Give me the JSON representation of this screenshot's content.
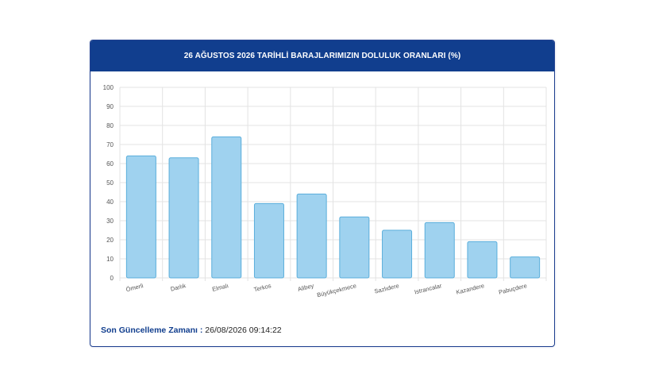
{
  "header": {
    "title": "26 AĞUSTOS 2026 TARİHLİ BARAJLARIMIZIN DOLULUK ORANLARI (%)"
  },
  "footer": {
    "label": "Son Güncelleme Zamanı :",
    "value": "26/08/2026 09:14:22"
  },
  "colors": {
    "header_bg": "#113e8e",
    "bar_fill": "#9fd2ef",
    "bar_stroke": "#5aaedb",
    "grid": "#e3e3e3"
  },
  "chart_data": {
    "type": "bar",
    "title": "26 AĞUSTOS 2026 TARİHLİ BARAJLARIMIZIN DOLULUK ORANLARI (%)",
    "categories": [
      "Ömerli",
      "Darlık",
      "Elmalı",
      "Terkos",
      "Alibey",
      "Büyükçekmece",
      "Sazlıdere",
      "Istrancalar",
      "Kazandere",
      "Pabuçdere"
    ],
    "values": [
      64,
      63,
      74,
      39,
      44,
      32,
      25,
      29,
      19,
      11
    ],
    "ylim": [
      0,
      100
    ],
    "yticks": [
      0,
      10,
      20,
      30,
      40,
      50,
      60,
      70,
      80,
      90,
      100
    ],
    "grid": true
  }
}
